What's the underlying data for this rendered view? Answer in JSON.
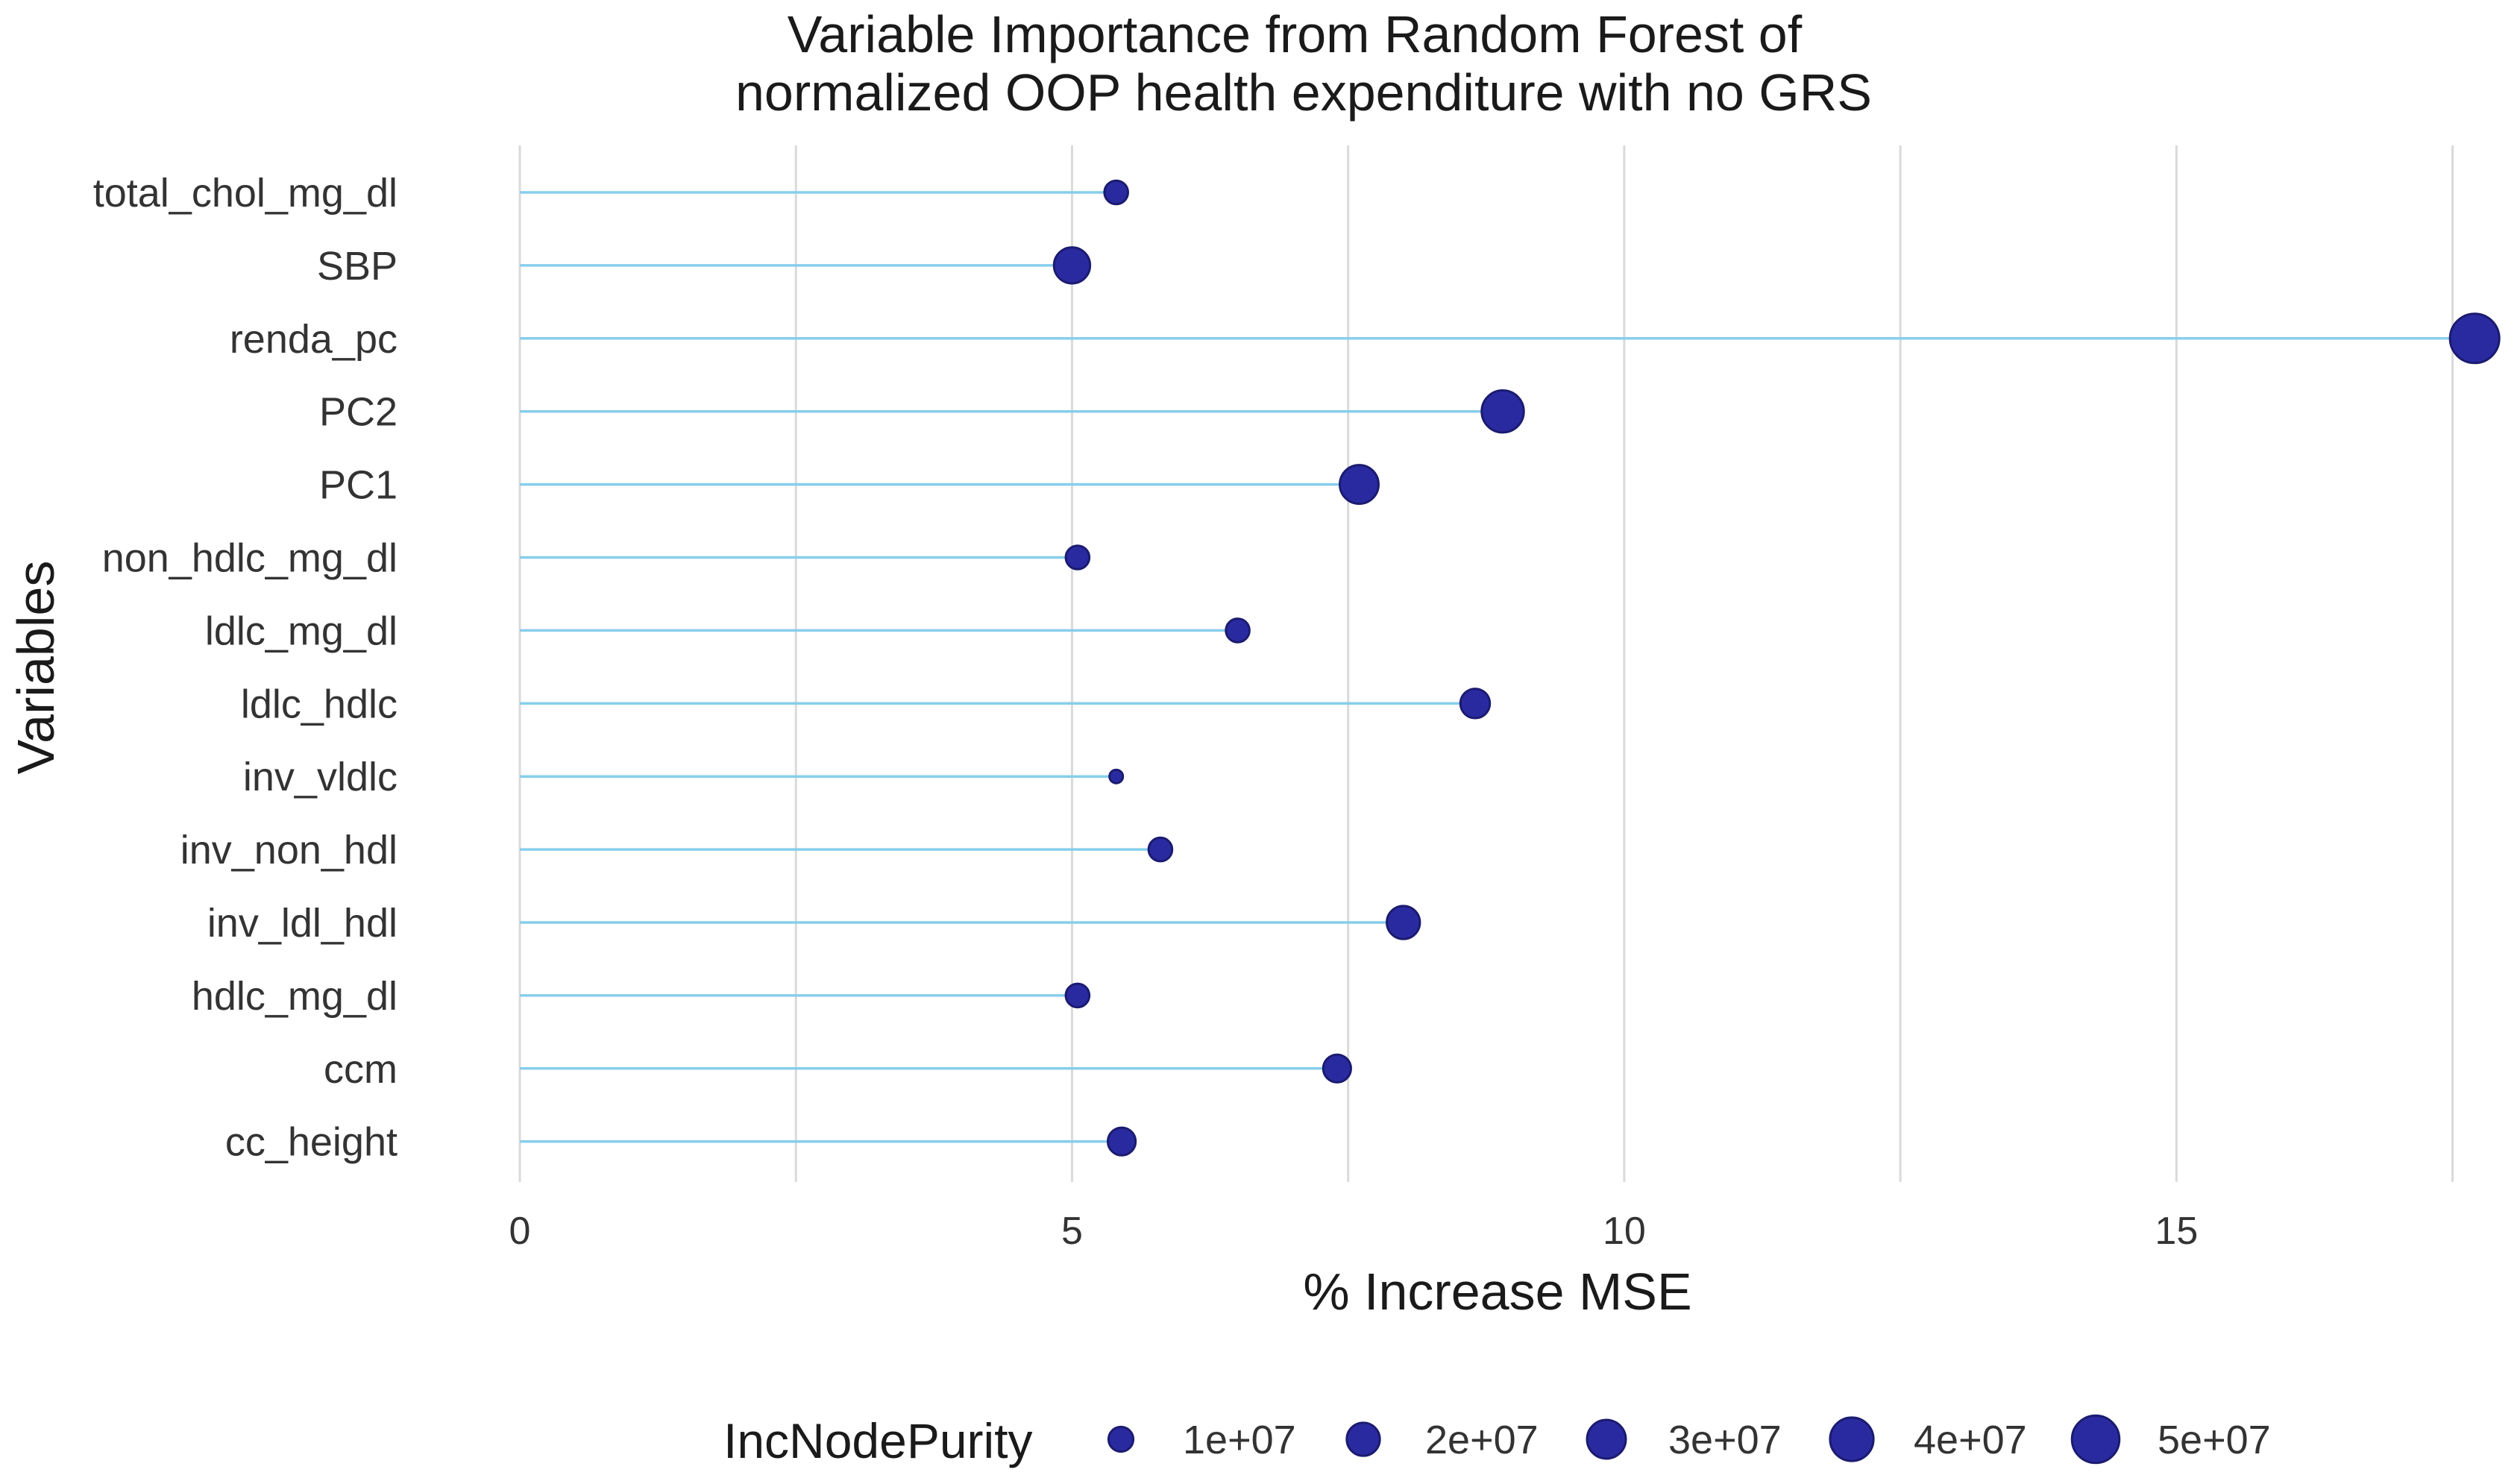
{
  "chart_data": {
    "type": "lollipop",
    "title_lines": [
      "Variable Importance from Random Forest of",
      "normalized OOP health expenditure with no GRS"
    ],
    "xlabel": "% Increase MSE",
    "ylabel": "Variables",
    "xlim": [
      0,
      17.8
    ],
    "x_ticks": [
      0,
      5,
      10,
      15
    ],
    "x_minor_ticks": [
      2.5,
      7.5,
      12.5,
      17.5
    ],
    "categories": [
      "total_chol_mg_dl",
      "SBP",
      "renda_pc",
      "PC2",
      "PC1",
      "non_hdlc_mg_dl",
      "ldlc_mg_dl",
      "ldlc_hdlc",
      "inv_vldlc",
      "inv_non_hdl",
      "inv_ldl_hdl",
      "hdlc_mg_dl",
      "ccm",
      "cc_height"
    ],
    "values": [
      5.4,
      5.0,
      17.7,
      8.9,
      7.6,
      5.05,
      6.5,
      8.65,
      5.4,
      5.8,
      8.0,
      5.05,
      7.4,
      5.45
    ],
    "size_values": [
      9000000,
      25000000,
      55000000,
      37000000,
      30000000,
      9000000,
      9000000,
      15000000,
      5000000,
      9000000,
      20000000,
      9000000,
      13000000,
      13000000
    ],
    "legend": {
      "title": "IncNodePurity",
      "entries": [
        {
          "label": "1e+07",
          "value": 10000000
        },
        {
          "label": "2e+07",
          "value": 20000000
        },
        {
          "label": "3e+07",
          "value": 30000000
        },
        {
          "label": "4e+07",
          "value": 40000000
        },
        {
          "label": "5e+07",
          "value": 50000000
        }
      ],
      "placement": "bottom"
    },
    "colors": {
      "stem": "#87CEEB",
      "point": "#2A2AA0",
      "point_stroke": "#1B1B70",
      "grid": "#dadada"
    }
  }
}
